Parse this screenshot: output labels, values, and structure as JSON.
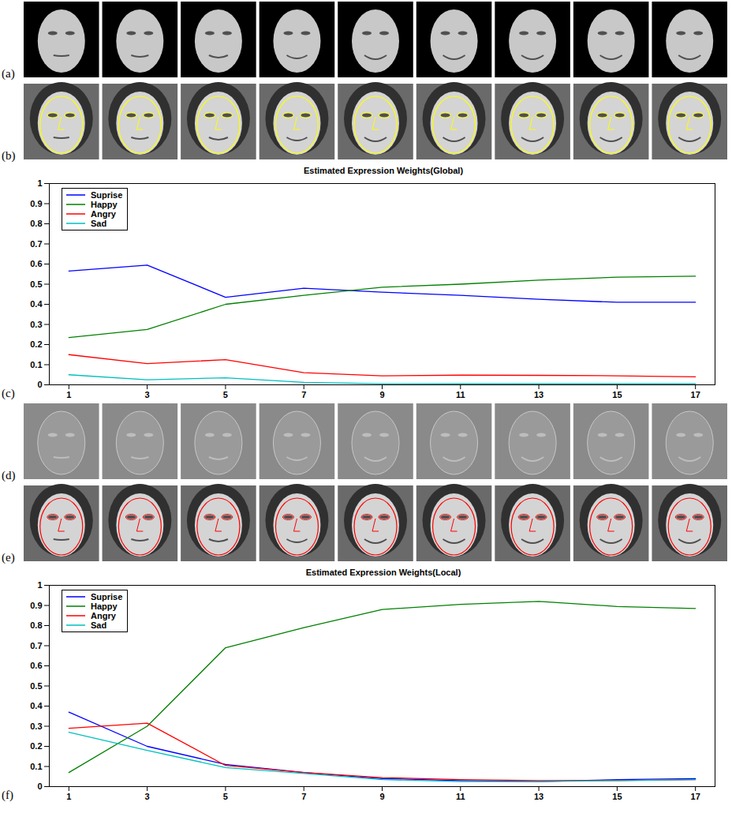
{
  "image_panels": [
    "(a)",
    "(b)",
    "(d)",
    "(e)"
  ],
  "chart_data": [
    {
      "panel": "(c)",
      "type": "line",
      "title": "Estimated Expression Weights(Global)",
      "x": [
        1,
        3,
        5,
        7,
        9,
        11,
        13,
        15,
        17
      ],
      "xlim": [
        0.5,
        17.5
      ],
      "xticks": [
        1,
        3,
        5,
        7,
        9,
        11,
        13,
        15,
        17
      ],
      "ylim": [
        0,
        1
      ],
      "yticks": [
        0,
        0.1,
        0.2,
        0.3,
        0.4,
        0.5,
        0.6,
        0.7,
        0.8,
        0.9,
        1
      ],
      "legend": "upper left",
      "series": [
        {
          "name": "Suprise",
          "color": "#0000ff",
          "values": [
            0.565,
            0.595,
            0.435,
            0.48,
            0.46,
            0.445,
            0.425,
            0.41,
            0.41
          ]
        },
        {
          "name": "Happy",
          "color": "#008000",
          "values": [
            0.235,
            0.275,
            0.4,
            0.445,
            0.485,
            0.5,
            0.52,
            0.535,
            0.54
          ]
        },
        {
          "name": "Angry",
          "color": "#ff0000",
          "values": [
            0.15,
            0.105,
            0.125,
            0.06,
            0.045,
            0.048,
            0.047,
            0.045,
            0.04
          ]
        },
        {
          "name": "Sad",
          "color": "#00bfbf",
          "values": [
            0.05,
            0.025,
            0.035,
            0.012,
            0.005,
            0.005,
            0.005,
            0.005,
            0.005
          ]
        }
      ]
    },
    {
      "panel": "(f)",
      "type": "line",
      "title": "Estimated Expression Weights(Local)",
      "x": [
        1,
        3,
        5,
        7,
        9,
        11,
        13,
        15,
        17
      ],
      "xlim": [
        0.5,
        17.5
      ],
      "xticks": [
        1,
        3,
        5,
        7,
        9,
        11,
        13,
        15,
        17
      ],
      "ylim": [
        0,
        1
      ],
      "yticks": [
        0,
        0.1,
        0.2,
        0.3,
        0.4,
        0.5,
        0.6,
        0.7,
        0.8,
        0.9,
        1
      ],
      "legend": "upper left",
      "series": [
        {
          "name": "Suprise",
          "color": "#0000ff",
          "values": [
            0.37,
            0.2,
            0.11,
            0.07,
            0.04,
            0.03,
            0.025,
            0.035,
            0.04
          ]
        },
        {
          "name": "Happy",
          "color": "#008000",
          "values": [
            0.07,
            0.3,
            0.69,
            0.79,
            0.88,
            0.905,
            0.92,
            0.895,
            0.885
          ]
        },
        {
          "name": "Angry",
          "color": "#ff0000",
          "values": [
            0.29,
            0.315,
            0.105,
            0.07,
            0.045,
            0.035,
            0.03,
            0.03,
            0.035
          ]
        },
        {
          "name": "Sad",
          "color": "#00bfbf",
          "values": [
            0.27,
            0.18,
            0.095,
            0.065,
            0.035,
            0.025,
            0.025,
            0.03,
            0.035
          ]
        }
      ]
    }
  ]
}
